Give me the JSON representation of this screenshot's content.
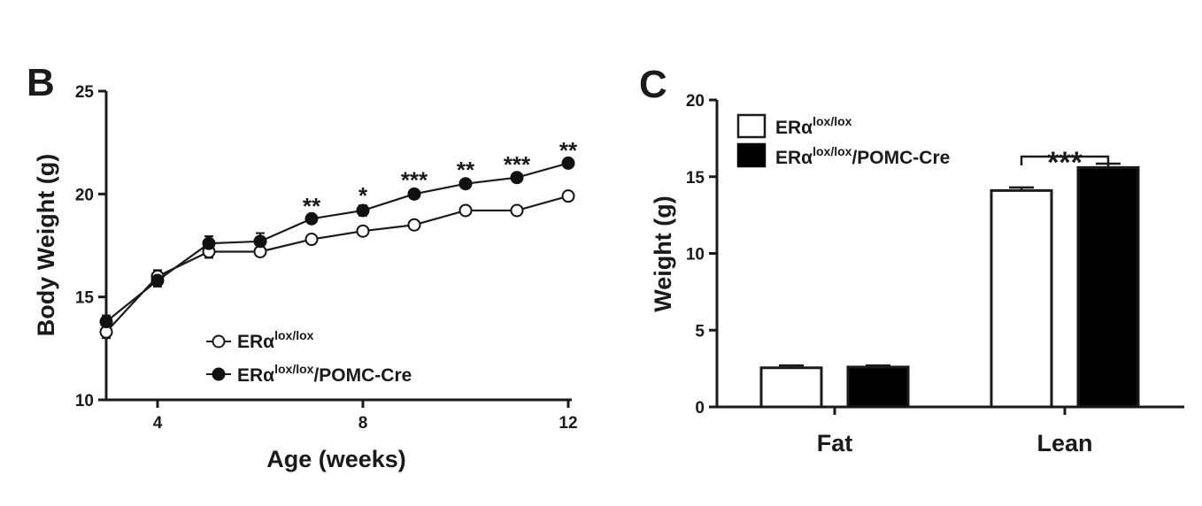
{
  "panels": {
    "b": {
      "letter": "B"
    },
    "c": {
      "letter": "C"
    }
  },
  "chart_data": [
    {
      "type": "line",
      "panel": "B",
      "xlabel": "Age (weeks)",
      "ylabel": "Body Weight (g)",
      "xlim": [
        3,
        12
      ],
      "ylim": [
        10,
        25
      ],
      "xticks": [
        4,
        8,
        12
      ],
      "yticks": [
        10,
        15,
        20,
        25
      ],
      "legend_position": "bottom-center",
      "x": [
        3,
        4,
        5,
        6,
        7,
        8,
        9,
        10,
        11,
        12
      ],
      "series": [
        {
          "name_main": "ERα",
          "name_sup": "lox/lox",
          "name_suffix": "",
          "marker": "open-circle",
          "values": [
            13.3,
            16.0,
            17.2,
            17.2,
            17.8,
            18.2,
            18.5,
            19.2,
            19.2,
            19.9
          ],
          "errors": [
            0.3,
            0.3,
            0.3,
            0.2,
            0.15,
            0.15,
            0.15,
            0.15,
            0.15,
            0.15
          ]
        },
        {
          "name_main": "ERα",
          "name_sup": "lox/lox",
          "name_suffix": "/POMC-Cre",
          "marker": "filled-circle",
          "values": [
            13.8,
            15.8,
            17.6,
            17.7,
            18.8,
            19.2,
            20.0,
            20.5,
            20.8,
            21.5
          ],
          "errors": [
            0.3,
            0.3,
            0.35,
            0.4,
            0.15,
            0.25,
            0.2,
            0.2,
            0.15,
            0.15
          ]
        }
      ],
      "significance": [
        {
          "x": 7,
          "label": "**"
        },
        {
          "x": 8,
          "label": "*"
        },
        {
          "x": 9,
          "label": "***"
        },
        {
          "x": 10,
          "label": "**"
        },
        {
          "x": 11,
          "label": "***"
        },
        {
          "x": 12,
          "label": "**"
        }
      ]
    },
    {
      "type": "bar",
      "panel": "C",
      "xlabel": "",
      "ylabel": "Weight (g)",
      "ylim": [
        0,
        20
      ],
      "yticks": [
        0,
        5,
        10,
        15,
        20
      ],
      "legend_position": "top-left",
      "categories": [
        "Fat",
        "Lean"
      ],
      "series": [
        {
          "name_main": "ERα",
          "name_sup": "lox/lox",
          "name_suffix": "",
          "fill": "#ffffff",
          "values": [
            2.55,
            14.1
          ],
          "errors": [
            0.15,
            0.2
          ]
        },
        {
          "name_main": "ERα",
          "name_sup": "lox/lox",
          "name_suffix": "/POMC-Cre",
          "fill": "#000000",
          "values": [
            2.6,
            15.6
          ],
          "errors": [
            0.1,
            0.25
          ]
        }
      ],
      "significance": [
        {
          "category": "Lean",
          "label": "***"
        }
      ]
    }
  ]
}
